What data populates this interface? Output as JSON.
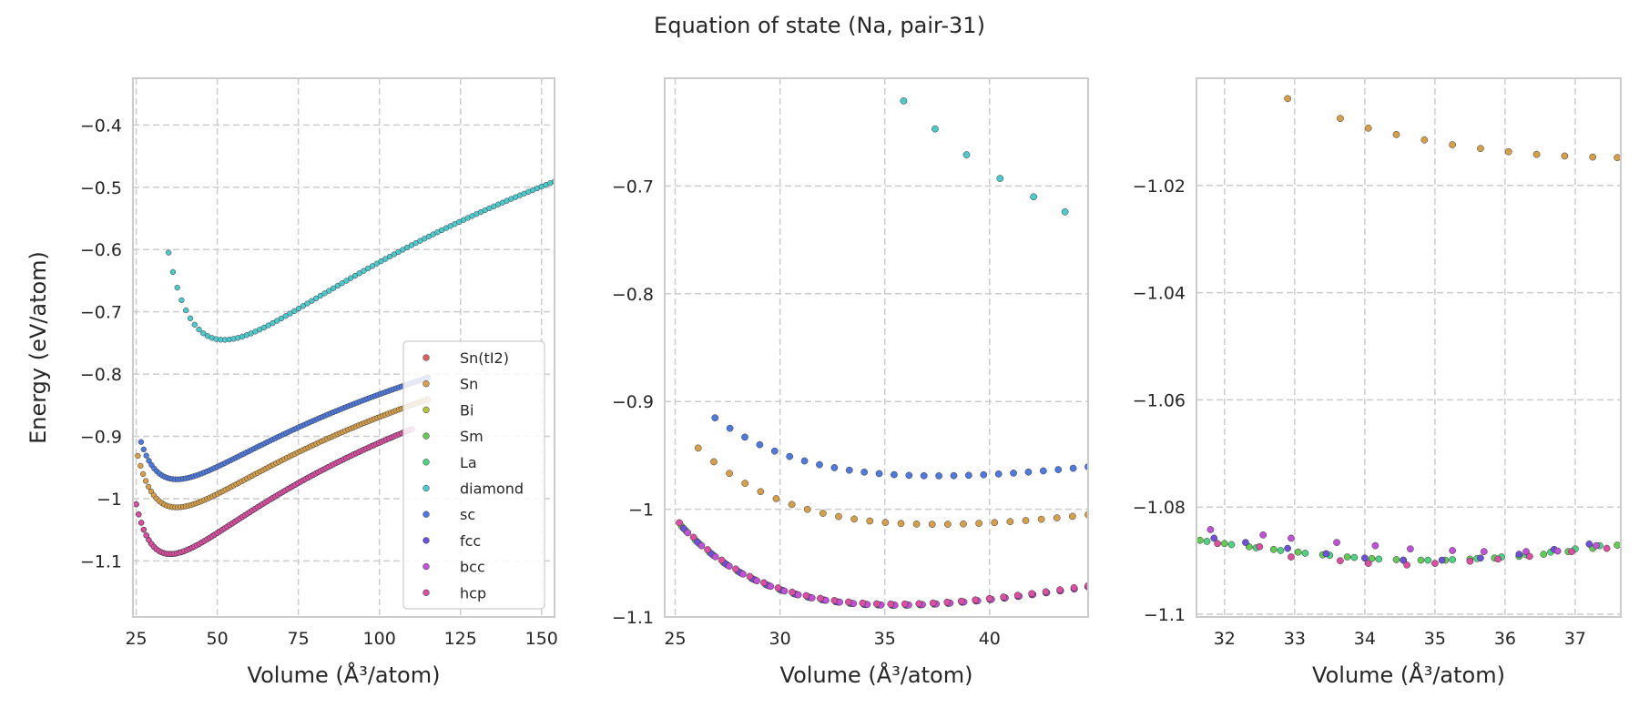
{
  "figure": {
    "suptitle": "Equation of state (Na, pair-31)"
  },
  "legend": {
    "placement": "lower right of first panel",
    "entries": [
      {
        "name": "Sn(tI2)",
        "color": "#d65f5f"
      },
      {
        "name": "Sn",
        "color": "#d5a04d"
      },
      {
        "name": "Bi",
        "color": "#b4c43c"
      },
      {
        "name": "Sm",
        "color": "#66c957"
      },
      {
        "name": "La",
        "color": "#4fd183"
      },
      {
        "name": "diamond",
        "color": "#4fc8cc"
      },
      {
        "name": "sc",
        "color": "#4f79db"
      },
      {
        "name": "fcc",
        "color": "#6d52d6"
      },
      {
        "name": "bcc",
        "color": "#c052d6"
      },
      {
        "name": "hcp",
        "color": "#d94fa1"
      }
    ]
  },
  "chart_data": [
    {
      "type": "scatter",
      "title": "",
      "xlabel": "Volume (Å³/atom)",
      "ylabel": "Energy (eV/atom)",
      "xlim": [
        24,
        154
      ],
      "ylim": [
        -1.19,
        -0.325
      ],
      "xticks": [
        25,
        50,
        75,
        100,
        125,
        150
      ],
      "yticks": [
        -1.1,
        -1.0,
        -0.9,
        -0.8,
        -0.7,
        -0.6,
        -0.5,
        -0.4
      ],
      "grid": true,
      "legend": true,
      "series": [
        {
          "name": "diamond",
          "kind": "eos",
          "v0": 52,
          "e0": -0.745,
          "B": 0.0018,
          "n": 3.4,
          "vmin": 35,
          "vmax": 154,
          "count": 90
        },
        {
          "name": "sc",
          "kind": "eos",
          "v0": 37.5,
          "e0": -0.969,
          "B": 0.0016,
          "n": 3.3,
          "vmin": 26.5,
          "vmax": 115,
          "count": 110
        },
        {
          "name": "Sn",
          "kind": "eos",
          "v0": 37.5,
          "e0": -1.014,
          "B": 0.0017,
          "n": 3.3,
          "vmin": 25.5,
          "vmax": 115,
          "count": 110
        },
        {
          "name": "Sm",
          "kind": "eos",
          "v0": 35.5,
          "e0": -1.089,
          "B": 0.0019,
          "n": 3.5,
          "vmin": 25,
          "vmax": 110,
          "count": 110
        },
        {
          "name": "La",
          "kind": "eos",
          "v0": 35.5,
          "e0": -1.089,
          "B": 0.0019,
          "n": 3.5,
          "vmin": 25,
          "vmax": 110,
          "count": 110
        },
        {
          "name": "fcc",
          "kind": "eos",
          "v0": 35.5,
          "e0": -1.089,
          "B": 0.0019,
          "n": 3.5,
          "vmin": 25,
          "vmax": 110,
          "count": 110
        },
        {
          "name": "bcc",
          "kind": "eos",
          "v0": 35.5,
          "e0": -1.089,
          "B": 0.0019,
          "n": 3.5,
          "vmin": 25,
          "vmax": 110,
          "count": 110
        },
        {
          "name": "hcp",
          "kind": "eos",
          "v0": 35.5,
          "e0": -1.089,
          "B": 0.0019,
          "n": 3.5,
          "vmin": 25,
          "vmax": 110,
          "count": 110
        }
      ]
    },
    {
      "type": "scatter",
      "title": "",
      "xlabel": "Volume (Å³/atom)",
      "ylabel": "",
      "xlim": [
        24.5,
        44.7
      ],
      "ylim": [
        -1.1,
        -0.6
      ],
      "xticks": [
        25,
        30,
        35,
        40
      ],
      "yticks": [
        -1.1,
        -1.0,
        -0.9,
        -0.8,
        -0.7
      ],
      "grid": true,
      "legend": false,
      "series": [
        {
          "name": "diamond",
          "x": [
            35.9,
            37.4,
            38.9,
            40.5,
            42.1,
            43.6
          ],
          "y": [
            -0.621,
            -0.647,
            -0.671,
            -0.693,
            -0.71,
            -0.724
          ]
        },
        {
          "name": "sc",
          "kind": "eos",
          "v0": 37.5,
          "e0": -0.969,
          "B": 0.0016,
          "n": 3.3,
          "vmin": 26.9,
          "vmax": 44.7,
          "count": 26
        },
        {
          "name": "Sn",
          "kind": "eos",
          "v0": 37.5,
          "e0": -1.014,
          "B": 0.0017,
          "n": 3.3,
          "vmin": 26.1,
          "vmax": 44.7,
          "count": 26
        },
        {
          "name": "Sm",
          "kind": "eos",
          "v0": 35.5,
          "e0": -1.089,
          "B": 0.0019,
          "n": 3.5,
          "vmin": 25.3,
          "vmax": 44.7,
          "count": 30
        },
        {
          "name": "La",
          "kind": "eos",
          "v0": 35.5,
          "e0": -1.089,
          "B": 0.0019,
          "n": 3.5,
          "vmin": 25.5,
          "vmax": 44.7,
          "count": 30
        },
        {
          "name": "fcc",
          "kind": "eos",
          "v0": 35.5,
          "e0": -1.089,
          "B": 0.0019,
          "n": 3.5,
          "vmin": 25.4,
          "vmax": 44.7,
          "count": 30
        },
        {
          "name": "bcc",
          "kind": "eos",
          "v0": 35.5,
          "e0": -1.089,
          "B": 0.0019,
          "n": 3.5,
          "vmin": 25.6,
          "vmax": 44.7,
          "count": 30
        },
        {
          "name": "hcp",
          "kind": "eos",
          "v0": 35.5,
          "e0": -1.088,
          "B": 0.0019,
          "n": 3.5,
          "vmin": 25.2,
          "vmax": 44.7,
          "count": 30
        }
      ]
    },
    {
      "type": "scatter",
      "title": "",
      "xlabel": "Volume (Å³/atom)",
      "ylabel": "",
      "xlim": [
        31.6,
        37.65
      ],
      "ylim": [
        -1.1005,
        -1.0
      ],
      "xticks": [
        32,
        33,
        34,
        35,
        36,
        37
      ],
      "yticks": [
        -1.1,
        -1.08,
        -1.06,
        -1.04,
        -1.02
      ],
      "grid": true,
      "legend": false,
      "series": [
        {
          "name": "Sn",
          "x": [
            32.9,
            33.65,
            34.05,
            34.45,
            34.85,
            35.25,
            35.65,
            36.05,
            36.45,
            36.85,
            37.25,
            37.6
          ],
          "y": [
            -1.0038,
            -1.0075,
            -1.0093,
            -1.0105,
            -1.0115,
            -1.0124,
            -1.0131,
            -1.0137,
            -1.0142,
            -1.0145,
            -1.0147,
            -1.0148
          ]
        },
        {
          "name": "Sm",
          "x": [
            31.65,
            32.0,
            32.35,
            32.7,
            33.05,
            33.4,
            33.75,
            34.1,
            34.45,
            34.8,
            35.15,
            35.5,
            35.85,
            36.2,
            36.55,
            36.9,
            37.25,
            37.6
          ],
          "y": [
            -1.0862,
            -1.0868,
            -1.0874,
            -1.0879,
            -1.0884,
            -1.0889,
            -1.0893,
            -1.0896,
            -1.0898,
            -1.0899,
            -1.0899,
            -1.0897,
            -1.0895,
            -1.0892,
            -1.0888,
            -1.0883,
            -1.0877,
            -1.0871
          ]
        },
        {
          "name": "La",
          "x": [
            31.75,
            32.1,
            32.45,
            32.8,
            33.15,
            33.5,
            33.85,
            34.2,
            34.55,
            34.9,
            35.25,
            35.6,
            35.95,
            36.3,
            36.65,
            37.0,
            37.35
          ],
          "y": [
            -1.0864,
            -1.087,
            -1.0876,
            -1.0881,
            -1.0886,
            -1.089,
            -1.0894,
            -1.0897,
            -1.0899,
            -1.0899,
            -1.0898,
            -1.0896,
            -1.0893,
            -1.0889,
            -1.0884,
            -1.0878,
            -1.0872
          ]
        },
        {
          "name": "fcc",
          "x": [
            31.85,
            32.3,
            32.9,
            33.45,
            34.0,
            34.55,
            35.1,
            35.65,
            36.2,
            36.7,
            37.2
          ],
          "y": [
            -1.0858,
            -1.0866,
            -1.0877,
            -1.0887,
            -1.0895,
            -1.0899,
            -1.0899,
            -1.0895,
            -1.0888,
            -1.0879,
            -1.0869
          ]
        },
        {
          "name": "bcc",
          "x": [
            31.8,
            32.55,
            32.95,
            33.6,
            34.15,
            34.65,
            35.25,
            35.7,
            36.3,
            36.75,
            37.3
          ],
          "y": [
            -1.0842,
            -1.0852,
            -1.0858,
            -1.0866,
            -1.0872,
            -1.0878,
            -1.0881,
            -1.0883,
            -1.0883,
            -1.0882,
            -1.0872
          ]
        },
        {
          "name": "hcp",
          "x": [
            31.9,
            32.5,
            32.95,
            33.65,
            34.05,
            34.6,
            35.0,
            35.5,
            35.9,
            36.35,
            36.95,
            37.45
          ],
          "y": [
            -1.0868,
            -1.0874,
            -1.0893,
            -1.09,
            -1.0905,
            -1.0908,
            -1.0905,
            -1.0901,
            -1.0897,
            -1.0892,
            -1.0883,
            -1.0877
          ]
        }
      ]
    }
  ]
}
